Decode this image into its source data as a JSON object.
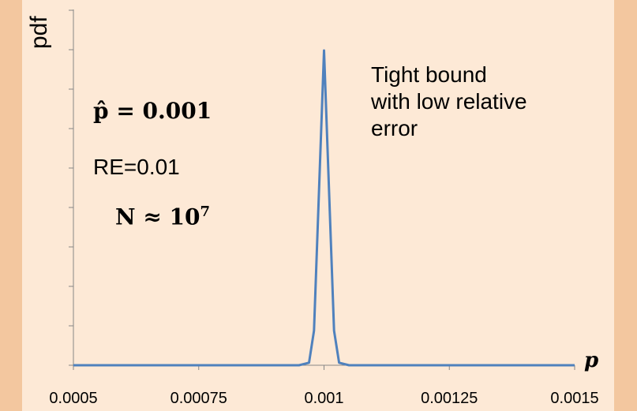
{
  "chart_data": {
    "type": "line",
    "title": "",
    "xlabel": "p",
    "ylabel": "pdf",
    "xlim": [
      0.0005,
      0.0015
    ],
    "x_ticks": [
      "0.0005",
      "0.00075",
      "0.001",
      "0.00125",
      "0.0015"
    ],
    "x_tick_values": [
      0.0005,
      0.00075,
      0.001,
      0.00125,
      0.0015
    ],
    "y_tick_count": 8,
    "grid": false,
    "series": [
      {
        "color": "#4f81bd",
        "x": [
          0.0005,
          0.0009,
          0.00095,
          0.00097,
          0.00098,
          0.001,
          0.00102,
          0.00103,
          0.00105,
          0.0011,
          0.0015
        ],
        "y": [
          0,
          0,
          0,
          0.008,
          0.11,
          1,
          0.11,
          0.008,
          0,
          0,
          0
        ]
      }
    ],
    "annotations": {
      "estimate": "p̂ = 0.001",
      "relative_error": "RE=0.01",
      "sample_size": "N ≈ 10",
      "sample_size_exponent": "7",
      "note_lines": [
        "Tight bound",
        "with low relative",
        "error"
      ]
    }
  }
}
